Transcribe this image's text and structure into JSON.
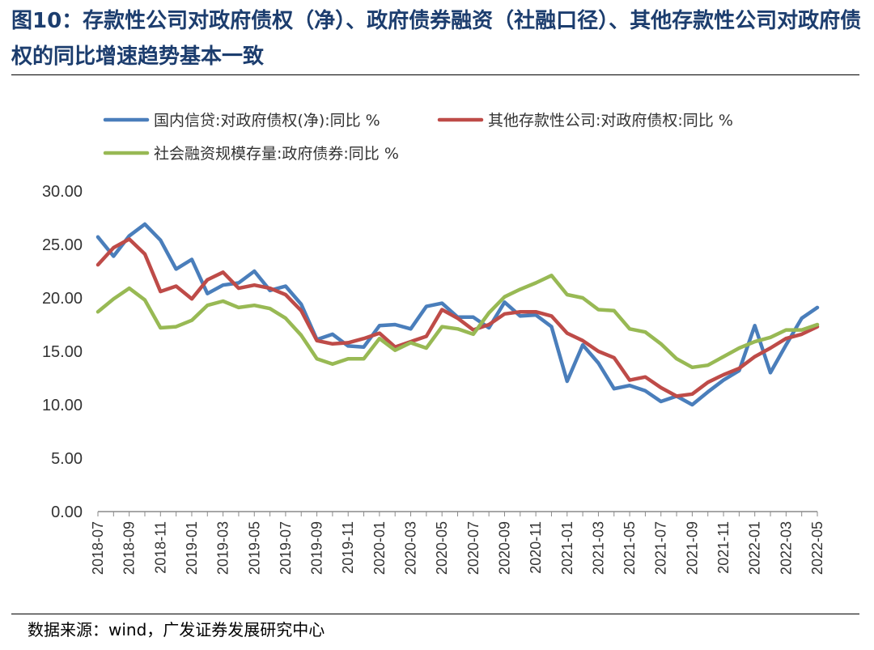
{
  "figure": {
    "title": "图10：存款性公司对政府债权（净）、政府债券融资（社融口径）、其他存款性公司对政府债权的同比增速趋势基本一致",
    "source": "数据来源：wind，广发证券发展研究中心"
  },
  "chart_data": {
    "type": "line",
    "title": "",
    "xlabel": "",
    "ylabel": "",
    "ylim": [
      0,
      30
    ],
    "yticks": [
      "0.00",
      "5.00",
      "10.00",
      "15.00",
      "20.00",
      "25.00",
      "30.00"
    ],
    "grid": false,
    "legend_position": "top",
    "x": [
      "2018-07",
      "2018-08",
      "2018-09",
      "2018-10",
      "2018-11",
      "2018-12",
      "2019-01",
      "2019-02",
      "2019-03",
      "2019-04",
      "2019-05",
      "2019-06",
      "2019-07",
      "2019-08",
      "2019-09",
      "2019-10",
      "2019-11",
      "2019-12",
      "2020-01",
      "2020-02",
      "2020-03",
      "2020-04",
      "2020-05",
      "2020-06",
      "2020-07",
      "2020-08",
      "2020-09",
      "2020-10",
      "2020-11",
      "2020-12",
      "2021-01",
      "2021-02",
      "2021-03",
      "2021-04",
      "2021-05",
      "2021-06",
      "2021-07",
      "2021-08",
      "2021-09",
      "2021-10",
      "2021-11",
      "2021-12",
      "2022-01",
      "2022-02",
      "2022-03",
      "2022-04",
      "2022-05"
    ],
    "xtick_labels": [
      "2018-07",
      "2018-09",
      "2018-11",
      "2019-01",
      "2019-03",
      "2019-05",
      "2019-07",
      "2019-09",
      "2019-11",
      "2020-01",
      "2020-03",
      "2020-05",
      "2020-07",
      "2020-09",
      "2020-11",
      "2021-01",
      "2021-03",
      "2021-05",
      "2021-07",
      "2021-09",
      "2021-11",
      "2022-01",
      "2022-03",
      "2022-05"
    ],
    "series": [
      {
        "name": "国内信贷:对政府债权(净):同比 %",
        "color": "#4a7ebb",
        "values": [
          25.7,
          23.9,
          25.8,
          26.9,
          25.4,
          22.7,
          23.6,
          20.4,
          21.2,
          21.4,
          22.5,
          20.7,
          21.1,
          19.4,
          16.1,
          16.6,
          15.5,
          15.4,
          17.4,
          17.5,
          17.1,
          19.2,
          19.5,
          18.2,
          18.2,
          17.2,
          19.6,
          18.3,
          18.4,
          17.3,
          12.2,
          15.6,
          13.9,
          11.5,
          11.8,
          11.3,
          10.3,
          10.8,
          10.0,
          11.2,
          12.3,
          13.2,
          17.4,
          13.0,
          15.6,
          18.1,
          19.1
        ]
      },
      {
        "name": "其他存款性公司:对政府债权:同比 %",
        "color": "#be4b48",
        "values": [
          23.1,
          24.7,
          25.5,
          24.1,
          20.6,
          21.1,
          19.9,
          21.7,
          22.4,
          20.9,
          21.2,
          20.9,
          20.3,
          18.8,
          16.0,
          15.7,
          15.8,
          16.2,
          16.7,
          15.4,
          15.9,
          16.4,
          18.9,
          18.1,
          17.0,
          17.5,
          18.5,
          18.7,
          18.7,
          18.3,
          16.7,
          16.0,
          15.0,
          14.4,
          12.3,
          12.6,
          11.6,
          10.8,
          11.0,
          12.1,
          12.8,
          13.4,
          14.5,
          15.3,
          16.2,
          16.6,
          17.3
        ]
      },
      {
        "name": "社会融资规模存量:政府债券:同比 %",
        "color": "#98b954",
        "values": [
          18.7,
          19.9,
          20.9,
          19.8,
          17.2,
          17.3,
          17.9,
          19.3,
          19.7,
          19.1,
          19.3,
          19.0,
          18.1,
          16.5,
          14.3,
          13.8,
          14.3,
          14.3,
          16.2,
          15.1,
          15.8,
          15.3,
          17.3,
          17.1,
          16.6,
          18.6,
          20.1,
          20.8,
          21.4,
          22.1,
          20.3,
          20.0,
          18.9,
          18.8,
          17.1,
          16.8,
          15.7,
          14.3,
          13.5,
          13.7,
          14.5,
          15.3,
          15.9,
          16.3,
          17.0,
          17.0,
          17.5
        ]
      }
    ]
  }
}
